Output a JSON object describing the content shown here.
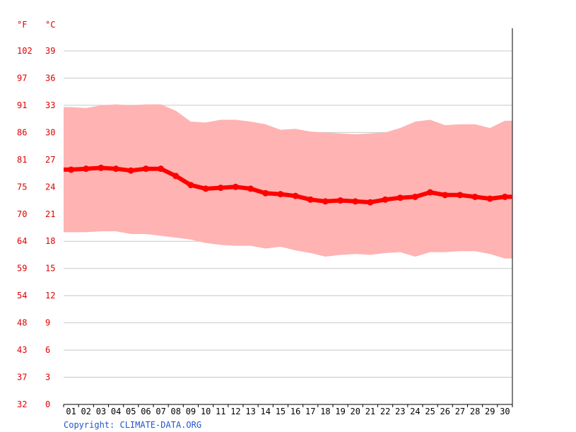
{
  "chart_data": {
    "type": "line",
    "units": {
      "fahrenheit": "°F",
      "celsius": "°C"
    },
    "y_ticks_c": [
      "39",
      "36",
      "33",
      "30",
      "27",
      "24",
      "21",
      "18",
      "15",
      "12",
      "9",
      "6",
      "3",
      "0"
    ],
    "y_ticks_f": [
      "102",
      "97",
      "91",
      "86",
      "81",
      "75",
      "70",
      "64",
      "59",
      "54",
      "48",
      "43",
      "37",
      "32"
    ],
    "ylim": [
      0,
      39
    ],
    "grid": true,
    "categories": [
      "01",
      "02",
      "03",
      "04",
      "05",
      "06",
      "07",
      "08",
      "09",
      "10",
      "11",
      "12",
      "13",
      "14",
      "15",
      "16",
      "17",
      "18",
      "19",
      "20",
      "21",
      "22",
      "23",
      "24",
      "25",
      "26",
      "27",
      "28",
      "29",
      "30"
    ],
    "series": [
      {
        "values": [
          25.9,
          26.0,
          26.1,
          26.0,
          25.8,
          26.0,
          26.0,
          25.2,
          24.2,
          23.8,
          23.9,
          24.0,
          23.8,
          23.3,
          23.2,
          23.0,
          22.6,
          22.4,
          22.5,
          22.4,
          22.3,
          22.6,
          22.8,
          22.9,
          23.4,
          23.1,
          23.1,
          22.9,
          22.7,
          22.9
        ]
      }
    ],
    "band": {
      "max": [
        32.8,
        32.7,
        33.0,
        33.1,
        33.0,
        33.1,
        33.1,
        32.4,
        31.2,
        31.1,
        31.4,
        31.4,
        31.2,
        30.9,
        30.3,
        30.4,
        30.1,
        30.0,
        29.9,
        29.8,
        29.9,
        30.0,
        30.5,
        31.2,
        31.4,
        30.8,
        30.9,
        30.9,
        30.5,
        31.3
      ],
      "min": [
        19.0,
        19.0,
        19.1,
        19.1,
        18.8,
        18.8,
        18.6,
        18.4,
        18.2,
        17.8,
        17.6,
        17.5,
        17.5,
        17.2,
        17.4,
        17.0,
        16.7,
        16.3,
        16.5,
        16.6,
        16.5,
        16.7,
        16.8,
        16.3,
        16.8,
        16.8,
        16.9,
        16.9,
        16.6,
        16.1
      ]
    },
    "colors": {
      "line": "#ff0000",
      "band": "#ffb3b3",
      "tick": "#e00000",
      "grid": "#c8c8c8",
      "copyright": "#2255cc"
    }
  },
  "copyright": "Copyright: CLIMATE-DATA.ORG"
}
